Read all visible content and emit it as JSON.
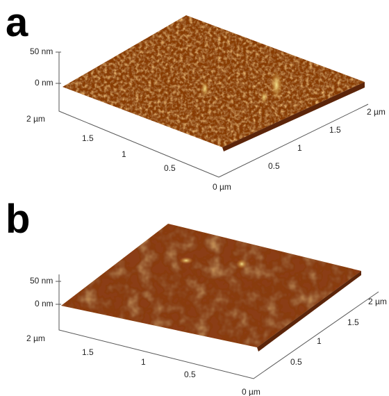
{
  "panels": [
    {
      "label": "a",
      "z_ticks": [
        "50 nm",
        "0 nm"
      ],
      "x_ticks": [
        "2 µm",
        "1.5",
        "1",
        "0.5",
        "0 µm"
      ],
      "y_ticks": [
        "0.5",
        "1",
        "1.5",
        "2 µm"
      ]
    },
    {
      "label": "b",
      "z_ticks": [
        "50 nm",
        "0 nm"
      ],
      "x_ticks": [
        "2 µm",
        "1.5",
        "1",
        "0.5",
        "0 µm"
      ],
      "y_ticks": [
        "0.5",
        "1",
        "1.5",
        "2 µm"
      ]
    }
  ]
}
